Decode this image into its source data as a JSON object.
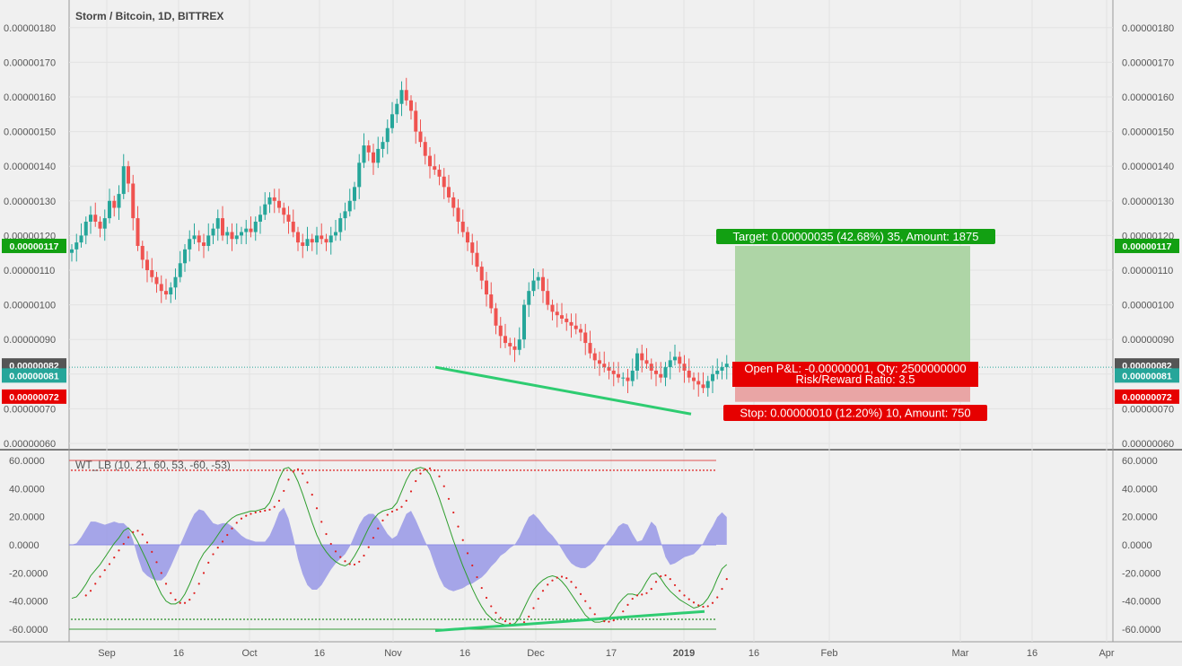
{
  "chart_data": {
    "type": "candlestick",
    "title": "Storm / Bitcoin, 1D, BITTREX",
    "price_axis": {
      "ticks": [
        "0.00000060",
        "0.00000070",
        "0.00000080",
        "0.00000090",
        "0.00000100",
        "0.00000110",
        "0.00000120",
        "0.00000130",
        "0.00000140",
        "0.00000150",
        "0.00000160",
        "0.00000170",
        "0.00000180"
      ],
      "range": [
        58,
        184
      ]
    },
    "x_axis": {
      "labels": [
        "Sep",
        "16",
        "Oct",
        "16",
        "Nov",
        "16",
        "Dec",
        "17",
        "2019",
        "16",
        "Feb",
        "Mar",
        "16",
        "Apr"
      ],
      "bold_label": "2019"
    },
    "candles_close": [
      116,
      118,
      120,
      124,
      126,
      124,
      122,
      125,
      130,
      128,
      132,
      140,
      135,
      125,
      117,
      113,
      110,
      108,
      106,
      104,
      103,
      105,
      108,
      112,
      116,
      119,
      120,
      118,
      117,
      120,
      122,
      125,
      120,
      121,
      119,
      120,
      121,
      122,
      121,
      124,
      126,
      129,
      131,
      130,
      128,
      126,
      124,
      121,
      118,
      117,
      119,
      118,
      120,
      119,
      118,
      120,
      121,
      125,
      127,
      130,
      134,
      141,
      146,
      144,
      141,
      145,
      147,
      151,
      155,
      158,
      162,
      159,
      156,
      150,
      147,
      143,
      140,
      139,
      137,
      134,
      131,
      128,
      124,
      121,
      118,
      115,
      111,
      107,
      103,
      99,
      94,
      91,
      89,
      88,
      87,
      90,
      100,
      104,
      107,
      108,
      104,
      100,
      98,
      97,
      96,
      95,
      94,
      93,
      92,
      89,
      86,
      84,
      83,
      82,
      81,
      80,
      79,
      79,
      78,
      81,
      86,
      84,
      83,
      81,
      80,
      79,
      82,
      84,
      85,
      83,
      81,
      79,
      78,
      77,
      76,
      78,
      80,
      81,
      82,
      83
    ],
    "current_price": "0.00000082",
    "last_price": "0.00000081",
    "target_price": "0.00000117",
    "stop_price": "0.00000072",
    "position": {
      "target_label": "Target: 0.00000035 (42.68%) 35, Amount: 1875",
      "pnl_label": "Open P&L: -0.00000001, Qty: 2500000000",
      "rr_label": "Risk/Reward Ratio: 3.5",
      "stop_label": "Stop: 0.00000010 (12.20%) 10, Amount: 750",
      "entry": 82,
      "target": 117,
      "stop": 72
    },
    "divergence_price": {
      "from": {
        "index": 80,
        "value": 82
      },
      "to": {
        "index": 120,
        "value": 69
      }
    },
    "indicator": {
      "title": "WT_LB (10, 21, 60, 53, -60, -53)",
      "ticks": [
        "60.0000",
        "40.0000",
        "20.0000",
        "0.0000",
        "-20.0000",
        "-40.0000",
        "-60.0000"
      ],
      "range": [
        -65,
        65
      ],
      "levels": [
        60,
        53,
        -53,
        -60
      ],
      "wt1": [
        -38,
        -37,
        -33,
        -28,
        -22,
        -18,
        -14,
        -9,
        -4,
        1,
        5,
        10,
        12,
        8,
        2,
        -5,
        -12,
        -20,
        -28,
        -35,
        -40,
        -42,
        -42,
        -40,
        -35,
        -28,
        -20,
        -12,
        -6,
        -2,
        2,
        7,
        12,
        16,
        19,
        21,
        22,
        23,
        24,
        24,
        25,
        26,
        30,
        38,
        47,
        54,
        55,
        52,
        45,
        36,
        26,
        16,
        7,
        0,
        -5,
        -9,
        -12,
        -14,
        -15,
        -13,
        -8,
        -2,
        5,
        12,
        18,
        22,
        24,
        25,
        26,
        30,
        38,
        46,
        52,
        54,
        55,
        54,
        50,
        42,
        33,
        23,
        13,
        3,
        -6,
        -15,
        -23,
        -31,
        -38,
        -44,
        -49,
        -52,
        -55,
        -56,
        -57,
        -57,
        -56,
        -52,
        -45,
        -38,
        -32,
        -28,
        -25,
        -23,
        -22,
        -23,
        -26,
        -30,
        -35,
        -40,
        -45,
        -50,
        -53,
        -55,
        -55,
        -54,
        -52,
        -48,
        -42,
        -38,
        -35,
        -35,
        -36,
        -32,
        -26,
        -21,
        -20,
        -24,
        -29,
        -33,
        -36,
        -39,
        -41,
        -43,
        -45,
        -44,
        -42,
        -38,
        -32,
        -24,
        -17,
        -14
      ],
      "wt2_offset": 3,
      "divergence": {
        "from": {
          "index": 80,
          "value": -61
        },
        "to": {
          "index": 120,
          "value": -48
        }
      }
    }
  }
}
